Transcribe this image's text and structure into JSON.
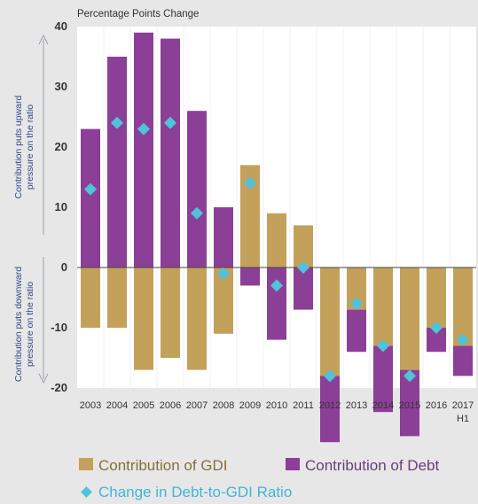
{
  "chart_data": {
    "type": "bar",
    "units_label": "Percentage Points Change",
    "categories": [
      "2003",
      "2004",
      "2005",
      "2006",
      "2007",
      "2008",
      "2009",
      "2010",
      "2011",
      "2012",
      "2013",
      "2014",
      "2015",
      "2016",
      "2017"
    ],
    "category_sublabels": [
      "",
      "",
      "",
      "",
      "",
      "",
      "",
      "",
      "",
      "",
      "",
      "",
      "",
      "",
      "H1"
    ],
    "series": [
      {
        "name": "Contribution of GDI",
        "type": "bar",
        "color": "#c4a15b",
        "values": [
          -10,
          -10,
          -17,
          -15,
          -17,
          -11,
          17,
          9,
          7,
          -18,
          -7,
          -13,
          -17,
          -10,
          -13
        ]
      },
      {
        "name": "Contribution of Debt",
        "type": "bar",
        "color": "#8c3f96",
        "values": [
          23,
          35,
          39,
          38,
          26,
          10,
          -3,
          -12,
          -7,
          -11,
          -7,
          -11,
          -11,
          -4,
          -5
        ]
      },
      {
        "name": "Change in Debt-to-GDI Ratio",
        "type": "scatter",
        "marker": "diamond",
        "color": "#4fc3dd",
        "values": [
          13,
          24,
          23,
          24,
          9,
          -1,
          14,
          -3,
          0,
          -18,
          -6,
          -13,
          -18,
          -10,
          -12
        ]
      }
    ],
    "ylim": [
      -20,
      40
    ],
    "yticks": [
      -20,
      -10,
      0,
      10,
      20,
      30,
      40
    ],
    "ylabel_upper": [
      "Contribution puts upward",
      "pressure on the ratio"
    ],
    "ylabel_lower": [
      "Contribution puts downward",
      "pressure on the ratio"
    ],
    "grid": false,
    "legend_position": "bottom"
  }
}
